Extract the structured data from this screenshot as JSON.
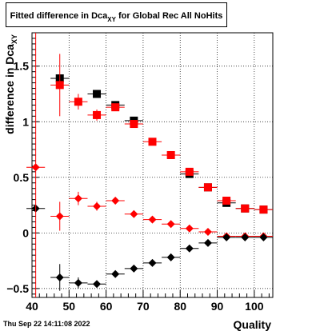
{
  "chart_data": {
    "type": "scatter",
    "title": {
      "main": "Fitted difference in Dca",
      "subscript": "XY",
      "suffix": " for Global Rec All NoHits"
    },
    "xlabel": "Quality",
    "ylabel": {
      "main": "difference in Dca",
      "subscript": "XY"
    },
    "xlim": [
      40,
      105
    ],
    "ylim": [
      -0.58,
      1.8
    ],
    "x_ticks": [
      40,
      50,
      60,
      70,
      80,
      90,
      100
    ],
    "y_ticks": [
      -0.5,
      0,
      0.5,
      1,
      1.5
    ],
    "y_tick_labels": [
      "−0.5",
      "0",
      "0.5",
      "1",
      "1.5"
    ],
    "grid": true,
    "series": [
      {
        "color": "#000000",
        "marker": "square",
        "points": [
          {
            "x": 47.5,
            "y": 1.39
          },
          {
            "x": 57.5,
            "y": 1.25
          },
          {
            "x": 62.5,
            "y": 1.15
          },
          {
            "x": 67.5,
            "y": 1.01
          },
          {
            "x": 82.5,
            "y": 0.53
          },
          {
            "x": 87.5,
            "y": 0.41
          },
          {
            "x": 92.5,
            "y": 0.27
          },
          {
            "x": 97.5,
            "y": 0.22
          },
          {
            "x": 102.5,
            "y": 0.21
          }
        ]
      },
      {
        "color": "#ff0000",
        "marker": "square",
        "points": [
          {
            "x": 47.5,
            "y": 1.33,
            "err": 0.28
          },
          {
            "x": 52.5,
            "y": 1.18,
            "err": 0.07
          },
          {
            "x": 57.5,
            "y": 1.06,
            "err": 0.05
          },
          {
            "x": 62.5,
            "y": 1.13,
            "err": 0.03
          },
          {
            "x": 67.5,
            "y": 0.98,
            "err": 0.02
          },
          {
            "x": 72.5,
            "y": 0.82,
            "err": 0.01
          },
          {
            "x": 77.5,
            "y": 0.7,
            "err": 0.01
          },
          {
            "x": 82.5,
            "y": 0.55,
            "err": 0.01
          },
          {
            "x": 87.5,
            "y": 0.41,
            "err": 0.01
          },
          {
            "x": 92.5,
            "y": 0.29,
            "err": 0.01
          },
          {
            "x": 97.5,
            "y": 0.22,
            "err": 0.01
          },
          {
            "x": 102.5,
            "y": 0.21,
            "err": 0.01
          }
        ]
      },
      {
        "color": "#ff0000",
        "marker": "diamond",
        "points": [
          {
            "x": 41.0,
            "y": 0.59,
            "err": 0.0
          },
          {
            "x": 47.5,
            "y": 0.15,
            "err": 0.13
          },
          {
            "x": 52.5,
            "y": 0.31,
            "err": 0.06
          },
          {
            "x": 57.5,
            "y": 0.24,
            "err": 0.04
          },
          {
            "x": 62.5,
            "y": 0.29,
            "err": 0.02
          },
          {
            "x": 67.5,
            "y": 0.17,
            "err": 0.01
          },
          {
            "x": 72.5,
            "y": 0.12,
            "err": 0.01
          },
          {
            "x": 77.5,
            "y": 0.08,
            "err": 0.01
          },
          {
            "x": 82.5,
            "y": 0.04,
            "err": 0.01
          },
          {
            "x": 87.5,
            "y": 0.01,
            "err": 0.01
          },
          {
            "x": 92.5,
            "y": -0.03,
            "err": 0.01
          },
          {
            "x": 97.5,
            "y": -0.03,
            "err": 0.01
          },
          {
            "x": 102.5,
            "y": -0.03,
            "err": 0.01
          }
        ]
      },
      {
        "color": "#000000",
        "marker": "diamond",
        "points": [
          {
            "x": 41.0,
            "y": 0.22,
            "err": 0.0
          },
          {
            "x": 47.5,
            "y": -0.4,
            "err": 0.12
          },
          {
            "x": 52.5,
            "y": -0.45,
            "err": 0.05
          },
          {
            "x": 57.5,
            "y": -0.46,
            "err": 0.03
          },
          {
            "x": 62.5,
            "y": -0.37,
            "err": 0.02
          },
          {
            "x": 67.5,
            "y": -0.32,
            "err": 0.01
          },
          {
            "x": 72.5,
            "y": -0.27,
            "err": 0.01
          },
          {
            "x": 77.5,
            "y": -0.22,
            "err": 0.01
          },
          {
            "x": 82.5,
            "y": -0.14,
            "err": 0.01
          },
          {
            "x": 87.5,
            "y": -0.09,
            "err": 0.01
          },
          {
            "x": 92.5,
            "y": -0.04,
            "err": 0.01
          },
          {
            "x": 97.5,
            "y": -0.04,
            "err": 0.01
          },
          {
            "x": 102.5,
            "y": -0.04,
            "err": 0.01
          }
        ]
      }
    ],
    "xerr": 2.5
  },
  "footer": {
    "date": "Thu Sep 22 14:11:08 2022"
  }
}
